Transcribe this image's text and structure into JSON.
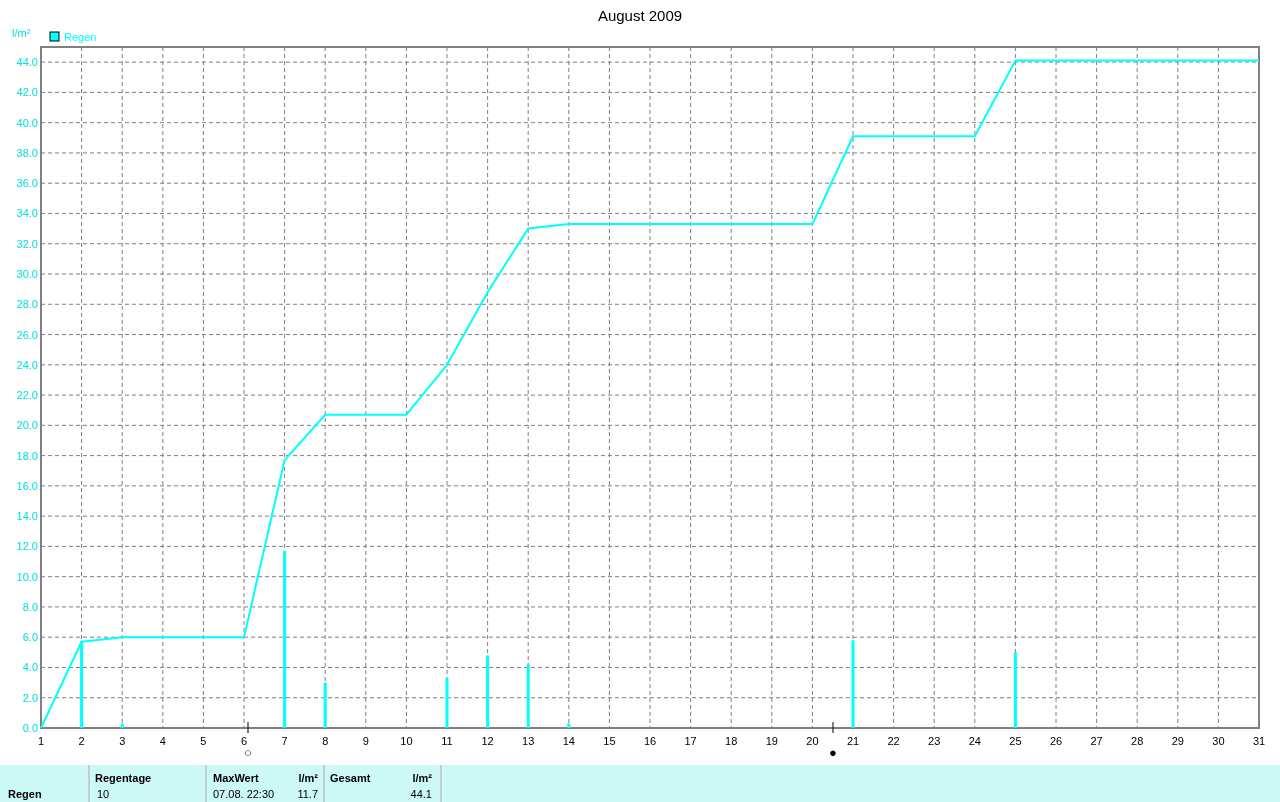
{
  "chart_data": {
    "type": "line",
    "title": "August 2009",
    "ylabel": "l/m²",
    "xlim": [
      1,
      31
    ],
    "xticks": [
      1,
      2,
      3,
      4,
      5,
      6,
      7,
      8,
      9,
      10,
      11,
      12,
      13,
      14,
      15,
      16,
      17,
      18,
      19,
      20,
      21,
      22,
      23,
      24,
      25,
      26,
      27,
      28,
      29,
      30,
      31
    ],
    "ylim": [
      0,
      45
    ],
    "yticks": [
      {
        "value": 0,
        "label": "0.0"
      },
      {
        "value": 2,
        "label": "2.0"
      },
      {
        "value": 4,
        "label": "4.0"
      },
      {
        "value": 6,
        "label": "6.0"
      },
      {
        "value": 8,
        "label": "8.0"
      },
      {
        "value": 10,
        "label": "10.0"
      },
      {
        "value": 12,
        "label": "12.0"
      },
      {
        "value": 14,
        "label": "14.0"
      },
      {
        "value": 16,
        "label": "16.0"
      },
      {
        "value": 18,
        "label": "18.0"
      },
      {
        "value": 20,
        "label": "20.0"
      },
      {
        "value": 22,
        "label": "22.0"
      },
      {
        "value": 24,
        "label": "24.0"
      },
      {
        "value": 26,
        "label": "26.0"
      },
      {
        "value": 28,
        "label": "28.0"
      },
      {
        "value": 30,
        "label": "30.0"
      },
      {
        "value": 32,
        "label": "32.0"
      },
      {
        "value": 34,
        "label": "34.0"
      },
      {
        "value": 36,
        "label": "36.0"
      },
      {
        "value": 38,
        "label": "38.0"
      },
      {
        "value": 40,
        "label": "40.0"
      },
      {
        "value": 42,
        "label": "42.0"
      },
      {
        "value": 44,
        "label": "44.0"
      }
    ],
    "series": [
      {
        "type": "bar",
        "color": "#00ffff",
        "x": [
          2,
          3,
          7,
          8,
          11,
          12,
          13,
          14,
          21,
          25
        ],
        "values": [
          5.7,
          0.3,
          11.7,
          3.0,
          3.3,
          4.8,
          4.2,
          0.3,
          5.8,
          5.0
        ]
      },
      {
        "name": "Regen",
        "color": "#00ffff",
        "x": [
          1,
          2,
          3,
          6,
          7,
          8,
          10,
          11,
          12,
          13,
          14,
          20,
          21,
          24,
          25,
          31
        ],
        "values": [
          0,
          5.7,
          6.0,
          6.0,
          17.7,
          20.7,
          20.7,
          24.0,
          28.8,
          33.0,
          33.3,
          33.3,
          39.1,
          39.1,
          44.1,
          44.1
        ]
      }
    ],
    "annotations": [
      "○",
      "●",
      "Regen",
      "Regentage",
      "10",
      "MaxWert",
      "07.08.  22:30",
      "l/m²",
      "11.7",
      "Gesamt",
      "l/m²",
      "44.1"
    ],
    "grid": true,
    "legend": "top left",
    "line_style": "solid",
    "marker": "none"
  }
}
